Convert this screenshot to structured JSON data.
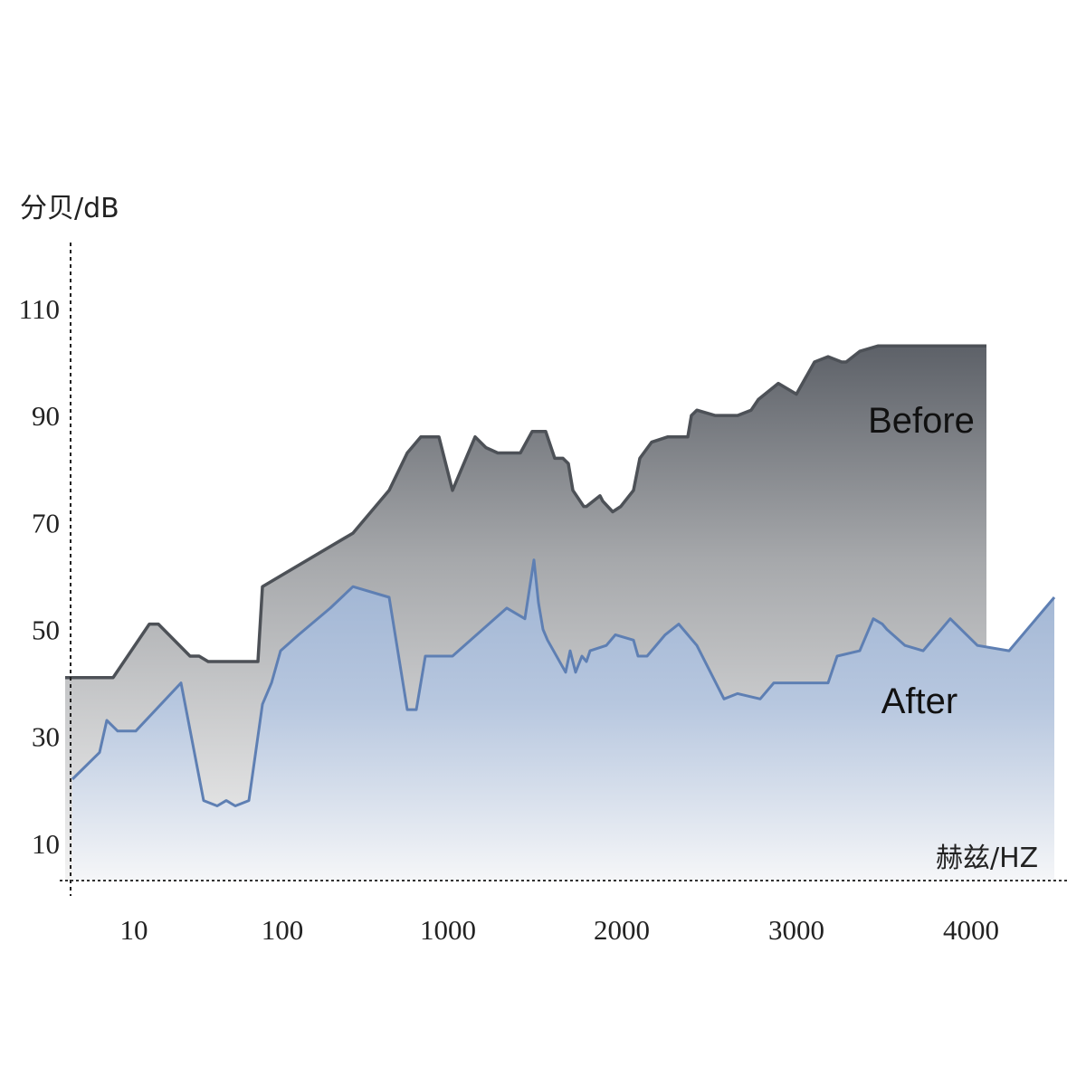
{
  "chart_data": {
    "type": "area",
    "ylabel": "分贝/dB",
    "xlabel": "赫兹/HZ",
    "x_tick_labels": [
      "10",
      "100",
      "1000",
      "2000",
      "3000",
      "4000"
    ],
    "y_tick_labels": [
      "110",
      "90",
      "70",
      "50",
      "30",
      "10"
    ],
    "y_ticks": [
      110,
      90,
      70,
      50,
      30,
      10
    ],
    "ylim": [
      0,
      116
    ],
    "grid": false,
    "series": [
      {
        "name": "Before",
        "color": "#4d5157",
        "x": [
          0.02,
          0.55,
          0.95,
          1.05,
          1.4,
          1.5,
          1.6,
          1.8,
          1.9,
          2.15,
          2.2,
          3.2,
          3.6,
          3.8,
          3.95,
          4.05,
          4.15,
          4.3,
          4.55,
          4.67,
          4.8,
          5.05,
          5.18,
          5.33,
          5.43,
          5.52,
          5.58,
          5.63,
          5.75,
          5.78,
          5.93,
          5.96,
          6.07,
          6.16,
          6.3,
          6.37,
          6.5,
          6.68,
          6.9,
          6.94,
          7.0,
          7.2,
          7.4,
          7.45,
          7.6,
          7.68,
          7.9,
          8.1,
          8.3,
          8.45,
          8.6,
          8.65,
          8.8,
          9.0,
          9.4,
          9.8,
          10.15,
          10.2
        ],
        "y": [
          41,
          41,
          51,
          51,
          45,
          45,
          44,
          44,
          44,
          44,
          58,
          68,
          76,
          83,
          86,
          86,
          86,
          76,
          86,
          84,
          83,
          83,
          87,
          87,
          82,
          82,
          81,
          76,
          73,
          73,
          75,
          74,
          72,
          73,
          76,
          82,
          85,
          86,
          86,
          90,
          91,
          90,
          90,
          90,
          91,
          93,
          96,
          94,
          100,
          101,
          100,
          100,
          102,
          103,
          103,
          103,
          103,
          103
        ]
      },
      {
        "name": "After",
        "color": "#5e7fb3",
        "x": [
          0.1,
          0.4,
          0.48,
          0.6,
          0.8,
          1.3,
          1.55,
          1.7,
          1.8,
          1.9,
          2.05,
          2.2,
          2.3,
          2.4,
          2.6,
          2.95,
          3.2,
          3.6,
          3.8,
          3.9,
          4.0,
          4.1,
          4.15,
          4.3,
          4.9,
          5.1,
          5.2,
          5.25,
          5.3,
          5.35,
          5.55,
          5.6,
          5.66,
          5.73,
          5.78,
          5.82,
          6.0,
          6.1,
          6.3,
          6.35,
          6.45,
          6.65,
          6.8,
          6.9,
          7.0,
          7.3,
          7.45,
          7.7,
          7.85,
          8.45,
          8.55,
          8.8,
          8.95,
          9.05,
          9.1,
          9.3,
          9.5,
          9.8,
          10.1,
          10.45,
          10.95
        ],
        "y": [
          22,
          27,
          33,
          31,
          31,
          40,
          18,
          17,
          18,
          17,
          18,
          36,
          40,
          46,
          49,
          54,
          58,
          56,
          35,
          35,
          45,
          45,
          45,
          45,
          54,
          52,
          63,
          55,
          50,
          48,
          42,
          46,
          42,
          45,
          44,
          46,
          47,
          49,
          48,
          45,
          45,
          49,
          51,
          49,
          47,
          37,
          38,
          37,
          40,
          40,
          45,
          46,
          52,
          51,
          50,
          47,
          46,
          52,
          47,
          46,
          56
        ]
      }
    ]
  }
}
